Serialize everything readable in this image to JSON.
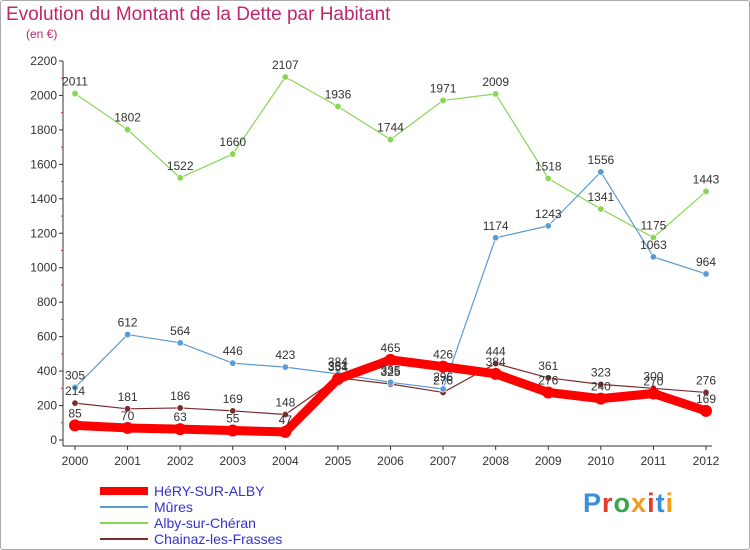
{
  "title": "Evolution du Montant de la Dette par Habitant",
  "subtitle": "(en €)",
  "brand": {
    "letters": [
      "P",
      "r",
      "o",
      "x",
      "i",
      "t",
      "i"
    ],
    "colors": [
      "#3b8fd6",
      "#e8392f",
      "#3aa64b",
      "#f29b1d",
      "#e8392f",
      "#3b8fd6",
      "#f29b1d"
    ]
  },
  "chart_data": {
    "type": "line",
    "x": [
      "2000",
      "2001",
      "2002",
      "2003",
      "2004",
      "2005",
      "2006",
      "2007",
      "2008",
      "2009",
      "2010",
      "2011",
      "2012"
    ],
    "ylim": [
      0,
      2200
    ],
    "yticks": [
      "0",
      "200",
      "400",
      "600",
      "800",
      "1000",
      "1200",
      "1400",
      "1600",
      "1800",
      "2000",
      "2200"
    ],
    "grid": false,
    "legend_position": "bottom-left",
    "series": [
      {
        "name": "HéRY-SUR-ALBY",
        "color": "#ff0000",
        "values": [
          85,
          70,
          63,
          55,
          47,
          354,
          465,
          426,
          384,
          276,
          240,
          270,
          169
        ],
        "labels": [
          "85",
          "70",
          "63",
          "55",
          "47",
          "354",
          "465",
          "426",
          "384",
          "276",
          "240",
          "270",
          "169"
        ]
      },
      {
        "name": "Mûres",
        "color": "#5b9bd5",
        "values": [
          305,
          612,
          564,
          446,
          423,
          384,
          335,
          296,
          1174,
          1243,
          1556,
          1063,
          964
        ],
        "labels": [
          "305",
          "612",
          "564",
          "446",
          "423",
          "384",
          "335",
          "296",
          "1174",
          "1243",
          "1556",
          "1063",
          "964"
        ]
      },
      {
        "name": "Alby-sur-Chéran",
        "color": "#88d654",
        "values": [
          2011,
          1802,
          1522,
          1660,
          2107,
          1936,
          1744,
          1971,
          2009,
          1518,
          1341,
          1175,
          1443
        ],
        "labels": [
          "2011",
          "1802",
          "1522",
          "1660",
          "2107",
          "1936",
          "1744",
          "1971",
          "2009",
          "1518",
          "1341",
          "1175",
          "1443"
        ]
      },
      {
        "name": "Chainaz-les-Frasses",
        "color": "#7b2d2d",
        "values": [
          214,
          181,
          186,
          169,
          148,
          361,
          325,
          276,
          444,
          361,
          323,
          300,
          276
        ],
        "labels": [
          "214",
          "181",
          "186",
          "169",
          "148",
          "361",
          "325",
          "276",
          "444",
          "361",
          "323",
          "300",
          "276"
        ]
      }
    ]
  }
}
